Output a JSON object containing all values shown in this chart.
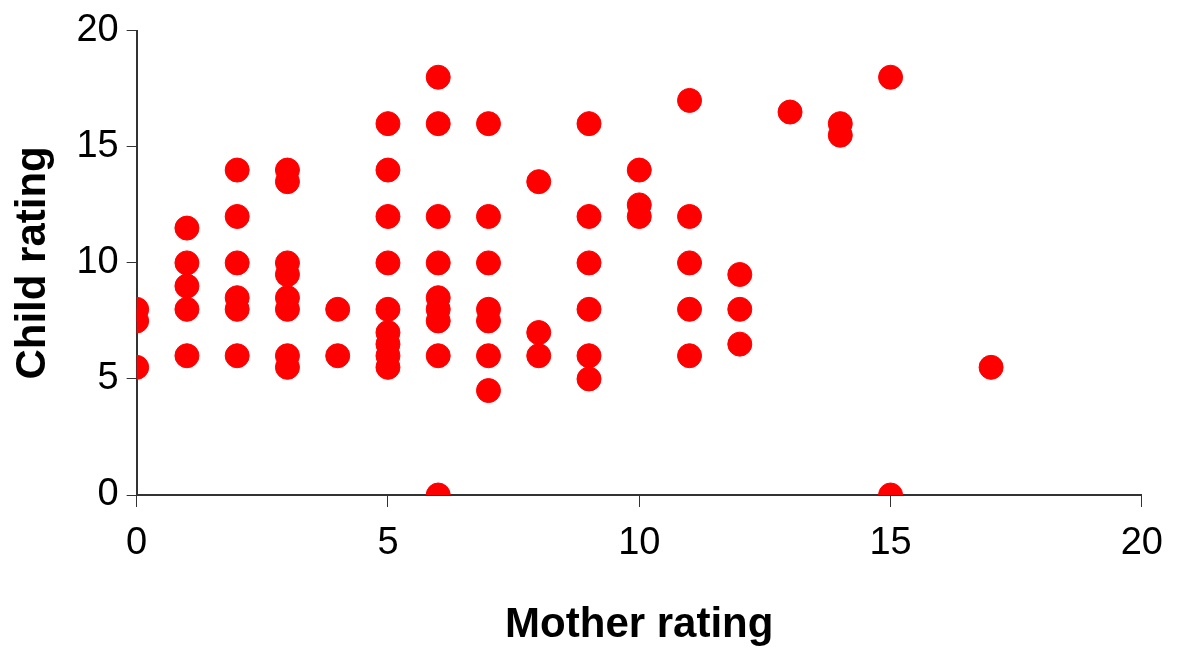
{
  "chart_data": {
    "type": "scatter",
    "xlabel": "Mother rating",
    "ylabel": "Child rating",
    "x": [
      0,
      0,
      0,
      1,
      1,
      1,
      1,
      1,
      2,
      2,
      2,
      2,
      2,
      2,
      3,
      3,
      3,
      3,
      3,
      3,
      3,
      3,
      4,
      4,
      5,
      5,
      5,
      5,
      5,
      5,
      5,
      5,
      5,
      6,
      6,
      6,
      6,
      6,
      6,
      6,
      6,
      6,
      7,
      7,
      7,
      7,
      7,
      7,
      7,
      8,
      8,
      8,
      9,
      9,
      9,
      9,
      9,
      9,
      10,
      10,
      10,
      11,
      11,
      11,
      11,
      11,
      12,
      12,
      12,
      13,
      14,
      14,
      15,
      15,
      17
    ],
    "values": [
      8,
      7.5,
      5.5,
      11.5,
      10,
      9,
      8,
      6,
      14,
      12,
      10,
      8.5,
      8,
      6,
      14,
      13.5,
      10,
      9.5,
      8.5,
      8,
      6,
      5.5,
      8,
      6,
      16,
      14,
      12,
      10,
      8,
      7,
      6.5,
      6,
      5.5,
      18,
      16,
      12,
      10,
      8.5,
      8,
      7.5,
      6,
      0,
      16,
      12,
      10,
      8,
      7.5,
      6,
      4.5,
      13.5,
      7,
      6,
      16,
      12,
      10,
      8,
      6,
      5,
      14,
      12.5,
      12,
      17,
      12,
      10,
      8,
      6,
      9.5,
      8,
      6.5,
      16.5,
      16,
      15.5,
      18,
      0,
      5.5
    ],
    "color": "#ff0000",
    "marker": "circle",
    "xlim": [
      0,
      20
    ],
    "ylim": [
      0,
      20
    ],
    "xticks": [
      0,
      5,
      10,
      15,
      20
    ],
    "yticks": [
      0,
      5,
      10,
      15,
      20
    ],
    "grid": false,
    "legend": false
  }
}
